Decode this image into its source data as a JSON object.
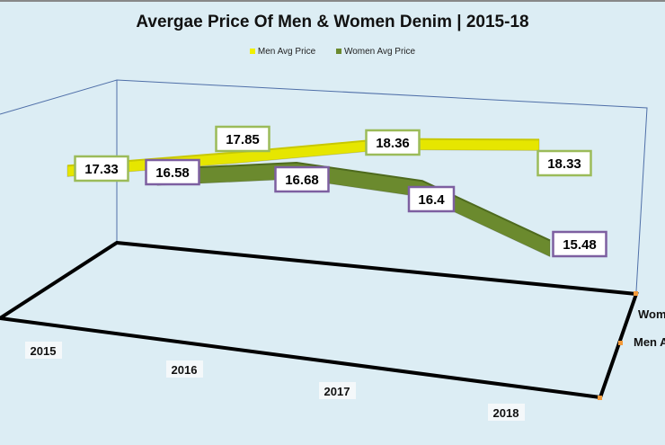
{
  "chart_data": {
    "type": "line",
    "subtype": "3d-ribbon",
    "title": "Avergae Price Of Men & Women Denim | 2015-18",
    "categories": [
      "2015",
      "2016",
      "2017",
      "2018"
    ],
    "series": [
      {
        "name": "Men Avg Price",
        "values": [
          17.33,
          17.85,
          18.36,
          18.33
        ],
        "color": "#e6e600",
        "label_border": "#9bbb59",
        "depth_label": "Men Avg"
      },
      {
        "name": "Women Avg Price",
        "values": [
          16.58,
          16.68,
          16.4,
          15.48
        ],
        "color": "#6b8a2e",
        "label_border": "#7d5fa0",
        "depth_label": "Wom"
      }
    ],
    "legend_position": "top",
    "grid": false
  }
}
